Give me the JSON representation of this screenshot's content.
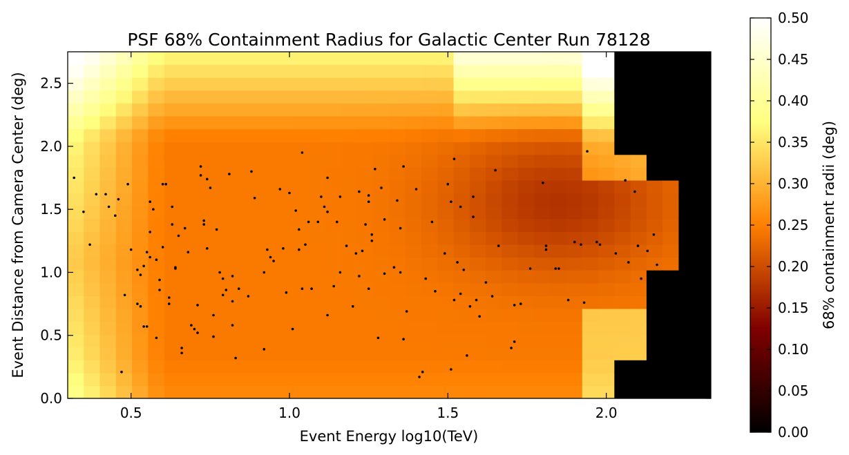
{
  "chart_data": {
    "type": "heatmap",
    "title": "PSF 68% Containment Radius for Galactic Center Run 78128",
    "xlabel": "Event Energy log10(TeV)",
    "ylabel": "Event Distance from Camera Center (deg)",
    "xlim": [
      0.3,
      2.33
    ],
    "ylim": [
      0.0,
      2.75
    ],
    "xticks": [
      0.5,
      1.0,
      1.5,
      2.0
    ],
    "xtick_labels": [
      "0.5",
      "1.0",
      "1.5",
      "2.0"
    ],
    "yticks": [
      0.0,
      0.5,
      1.0,
      1.5,
      2.0,
      2.5
    ],
    "ytick_labels": [
      "0.0",
      "0.5",
      "1.0",
      "1.5",
      "2.0",
      "2.5"
    ],
    "grid": false,
    "colorbar": {
      "label": "68% containment radii (deg)",
      "range": [
        0.0,
        0.5
      ],
      "ticks": [
        0.0,
        0.05,
        0.1,
        0.15,
        0.2,
        0.25,
        0.3,
        0.35,
        0.4,
        0.45,
        0.5
      ],
      "tick_labels": [
        "0.00",
        "0.05",
        "0.10",
        "0.15",
        "0.20",
        "0.25",
        "0.30",
        "0.35",
        "0.40",
        "0.45",
        "0.50"
      ],
      "colormap": "afmhot"
    },
    "heatmap": {
      "x_bins": [
        0.3,
        2.33,
        40
      ],
      "y_bins": [
        0.0,
        2.75,
        27
      ],
      "no_data_x_start": 2.02,
      "description_of_values": "containment radius in deg"
    },
    "points": [
      [
        0.32,
        1.75
      ],
      [
        0.35,
        1.48
      ],
      [
        0.37,
        1.22
      ],
      [
        0.39,
        1.62
      ],
      [
        0.42,
        1.62
      ],
      [
        0.43,
        1.52
      ],
      [
        0.45,
        1.45
      ],
      [
        0.46,
        1.58
      ],
      [
        0.47,
        0.21
      ],
      [
        0.48,
        0.82
      ],
      [
        0.49,
        1.7
      ],
      [
        0.5,
        1.18
      ],
      [
        0.52,
        1.02
      ],
      [
        0.52,
        0.75
      ],
      [
        0.53,
        0.98
      ],
      [
        0.53,
        0.73
      ],
      [
        0.54,
        1.05
      ],
      [
        0.54,
        0.57
      ],
      [
        0.55,
        1.16
      ],
      [
        0.55,
        0.57
      ],
      [
        0.56,
        1.56
      ],
      [
        0.56,
        1.32
      ],
      [
        0.56,
        1.12
      ],
      [
        0.57,
        1.5
      ],
      [
        0.58,
        1.1
      ],
      [
        0.58,
        0.48
      ],
      [
        0.59,
        0.94
      ],
      [
        0.59,
        0.86
      ],
      [
        0.6,
        1.7
      ],
      [
        0.6,
        1.2
      ],
      [
        0.61,
        1.7
      ],
      [
        0.62,
        0.75
      ],
      [
        0.62,
        0.8
      ],
      [
        0.63,
        1.52
      ],
      [
        0.63,
        1.38
      ],
      [
        0.64,
        1.04
      ],
      [
        0.64,
        1.03
      ],
      [
        0.65,
        1.29
      ],
      [
        0.66,
        0.4
      ],
      [
        0.66,
        0.36
      ],
      [
        0.67,
        1.35
      ],
      [
        0.68,
        1.16
      ],
      [
        0.69,
        0.58
      ],
      [
        0.7,
        0.55
      ],
      [
        0.71,
        0.52
      ],
      [
        0.71,
        0.74
      ],
      [
        0.72,
        1.84
      ],
      [
        0.72,
        1.77
      ],
      [
        0.73,
        1.41
      ],
      [
        0.73,
        1.38
      ],
      [
        0.74,
        1.74
      ],
      [
        0.74,
        1.19
      ],
      [
        0.75,
        1.67
      ],
      [
        0.76,
        0.66
      ],
      [
        0.76,
        0.49
      ],
      [
        0.77,
        1.34
      ],
      [
        0.78,
        1.0
      ],
      [
        0.79,
        0.95
      ],
      [
        0.79,
        0.82
      ],
      [
        0.8,
        0.86
      ],
      [
        0.81,
        1.78
      ],
      [
        0.82,
        0.97
      ],
      [
        0.82,
        0.77
      ],
      [
        0.82,
        0.58
      ],
      [
        0.83,
        0.32
      ],
      [
        0.84,
        0.87
      ],
      [
        0.87,
        0.81
      ],
      [
        0.88,
        1.8
      ],
      [
        0.89,
        1.59
      ],
      [
        0.92,
        1.0
      ],
      [
        0.92,
        0.39
      ],
      [
        0.93,
        1.18
      ],
      [
        0.94,
        1.12
      ],
      [
        0.95,
        1.09
      ],
      [
        0.97,
        1.66
      ],
      [
        0.98,
        1.19
      ],
      [
        0.99,
        0.84
      ],
      [
        1.0,
        1.63
      ],
      [
        1.01,
        0.55
      ],
      [
        1.02,
        1.49
      ],
      [
        1.03,
        1.34
      ],
      [
        1.03,
        1.18
      ],
      [
        1.04,
        0.87
      ],
      [
        1.04,
        1.95
      ],
      [
        1.05,
        1.22
      ],
      [
        1.06,
        1.4
      ],
      [
        1.07,
        0.87
      ],
      [
        1.09,
        1.4
      ],
      [
        1.1,
        1.6
      ],
      [
        1.11,
        1.52
      ],
      [
        1.12,
        1.48
      ],
      [
        1.12,
        0.66
      ],
      [
        1.12,
        1.75
      ],
      [
        1.14,
        0.89
      ],
      [
        1.15,
        1.4
      ],
      [
        1.16,
        1.0
      ],
      [
        1.16,
        1.6
      ],
      [
        1.18,
        1.21
      ],
      [
        1.2,
        0.73
      ],
      [
        1.21,
        1.15
      ],
      [
        1.22,
        1.64
      ],
      [
        1.22,
        0.97
      ],
      [
        1.23,
        1.17
      ],
      [
        1.24,
        1.38
      ],
      [
        1.25,
        1.61
      ],
      [
        1.25,
        1.56
      ],
      [
        1.25,
        0.87
      ],
      [
        1.26,
        1.3
      ],
      [
        1.26,
        1.25
      ],
      [
        1.27,
        1.82
      ],
      [
        1.28,
        0.48
      ],
      [
        1.29,
        1.67
      ],
      [
        1.3,
        1.42
      ],
      [
        1.3,
        0.99
      ],
      [
        1.33,
        1.04
      ],
      [
        1.34,
        1.57
      ],
      [
        1.35,
        1.35
      ],
      [
        1.35,
        1.0
      ],
      [
        1.36,
        0.47
      ],
      [
        1.37,
        0.69
      ],
      [
        1.36,
        1.84
      ],
      [
        1.4,
        1.66
      ],
      [
        1.41,
        0.17
      ],
      [
        1.42,
        0.21
      ],
      [
        1.43,
        0.95
      ],
      [
        1.45,
        1.4
      ],
      [
        1.46,
        0.85
      ],
      [
        1.49,
        1.15
      ],
      [
        1.5,
        1.7
      ],
      [
        1.51,
        1.56
      ],
      [
        1.51,
        0.23
      ],
      [
        1.52,
        0.78
      ],
      [
        1.52,
        1.9
      ],
      [
        1.53,
        1.08
      ],
      [
        1.54,
        1.52
      ],
      [
        1.54,
        0.83
      ],
      [
        1.55,
        1.02
      ],
      [
        1.56,
        0.34
      ],
      [
        1.57,
        0.73
      ],
      [
        1.58,
        1.6
      ],
      [
        1.58,
        1.44
      ],
      [
        1.59,
        0.78
      ],
      [
        1.6,
        0.65
      ],
      [
        1.62,
        0.92
      ],
      [
        1.64,
        0.81
      ],
      [
        1.65,
        1.81
      ],
      [
        1.66,
        1.21
      ],
      [
        1.7,
        0.4
      ],
      [
        1.71,
        0.45
      ],
      [
        1.71,
        0.74
      ],
      [
        1.73,
        0.75
      ],
      [
        1.76,
        1.03
      ],
      [
        1.8,
        1.71
      ],
      [
        1.81,
        1.21
      ],
      [
        1.81,
        1.18
      ],
      [
        1.84,
        1.03
      ],
      [
        1.85,
        1.03
      ],
      [
        1.88,
        0.78
      ],
      [
        1.9,
        1.24
      ],
      [
        1.92,
        1.22
      ],
      [
        1.93,
        0.76
      ],
      [
        1.94,
        1.96
      ],
      [
        1.97,
        1.24
      ],
      [
        1.98,
        1.22
      ],
      [
        2.03,
        1.15
      ],
      [
        2.06,
        1.73
      ],
      [
        2.07,
        1.08
      ],
      [
        2.09,
        1.64
      ],
      [
        2.1,
        1.21
      ],
      [
        2.11,
        0.95
      ],
      [
        2.13,
        1.17
      ],
      [
        2.15,
        1.3
      ],
      [
        2.16,
        1.06
      ],
      [
        2.18,
        0.89
      ],
      [
        2.2,
        0.84
      ]
    ]
  }
}
